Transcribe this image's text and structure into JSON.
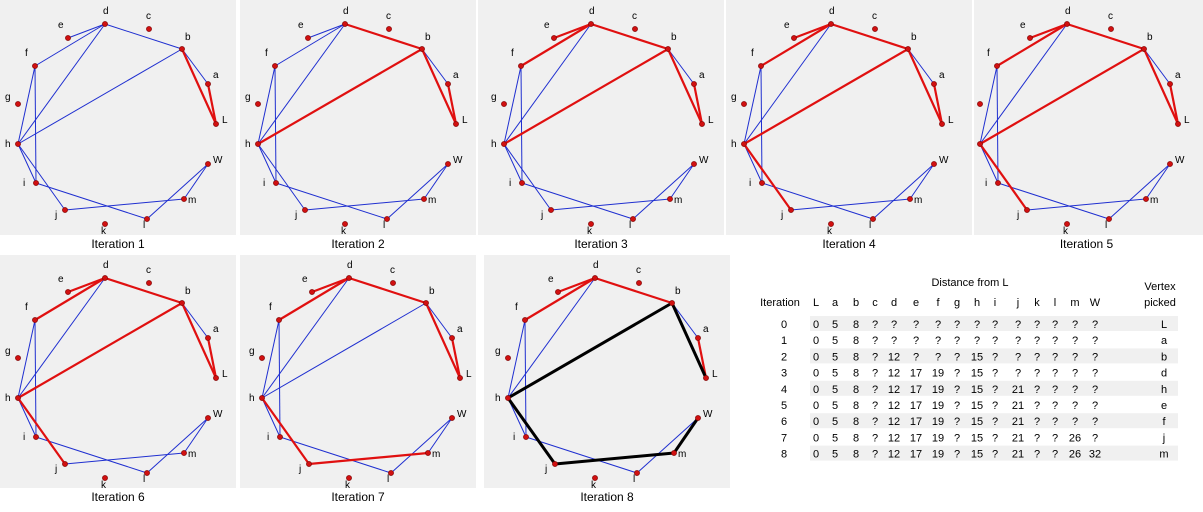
{
  "graph": {
    "vertices": [
      {
        "id": "d",
        "label": "d"
      },
      {
        "id": "c",
        "label": "c"
      },
      {
        "id": "e",
        "label": "e"
      },
      {
        "id": "b",
        "label": "b"
      },
      {
        "id": "f",
        "label": "f"
      },
      {
        "id": "a",
        "label": "a"
      },
      {
        "id": "g",
        "label": "g"
      },
      {
        "id": "L",
        "label": "L"
      },
      {
        "id": "h",
        "label": "h"
      },
      {
        "id": "W",
        "label": "W"
      },
      {
        "id": "i",
        "label": "i"
      },
      {
        "id": "m",
        "label": "m"
      },
      {
        "id": "j",
        "label": "j"
      },
      {
        "id": "l",
        "label": "l"
      },
      {
        "id": "k",
        "label": "k"
      }
    ],
    "edges": [
      [
        "d",
        "e"
      ],
      [
        "d",
        "f"
      ],
      [
        "d",
        "b"
      ],
      [
        "d",
        "h"
      ],
      [
        "b",
        "a"
      ],
      [
        "b",
        "L"
      ],
      [
        "a",
        "L"
      ],
      [
        "b",
        "h"
      ],
      [
        "f",
        "h"
      ],
      [
        "f",
        "i"
      ],
      [
        "h",
        "i"
      ],
      [
        "i",
        "l"
      ],
      [
        "j",
        "m"
      ],
      [
        "j",
        "h"
      ],
      [
        "m",
        "W"
      ],
      [
        "l",
        "W"
      ]
    ]
  },
  "iterations": [
    {
      "caption": "Iteration 1",
      "red_edges": [
        [
          "b",
          "L"
        ],
        [
          "a",
          "L"
        ]
      ],
      "black_edges": []
    },
    {
      "caption": "Iteration 2",
      "red_edges": [
        [
          "b",
          "L"
        ],
        [
          "a",
          "L"
        ],
        [
          "d",
          "b"
        ],
        [
          "b",
          "h"
        ]
      ],
      "black_edges": []
    },
    {
      "caption": "Iteration 3",
      "red_edges": [
        [
          "b",
          "L"
        ],
        [
          "a",
          "L"
        ],
        [
          "d",
          "b"
        ],
        [
          "b",
          "h"
        ],
        [
          "d",
          "e"
        ],
        [
          "d",
          "f"
        ]
      ],
      "black_edges": []
    },
    {
      "caption": "Iteration 4",
      "red_edges": [
        [
          "b",
          "L"
        ],
        [
          "a",
          "L"
        ],
        [
          "d",
          "b"
        ],
        [
          "b",
          "h"
        ],
        [
          "d",
          "e"
        ],
        [
          "d",
          "f"
        ],
        [
          "j",
          "h"
        ]
      ],
      "black_edges": []
    },
    {
      "caption": "Iteration 5",
      "red_edges": [
        [
          "b",
          "L"
        ],
        [
          "a",
          "L"
        ],
        [
          "d",
          "b"
        ],
        [
          "b",
          "h"
        ],
        [
          "d",
          "e"
        ],
        [
          "d",
          "f"
        ],
        [
          "j",
          "h"
        ]
      ],
      "black_edges": []
    },
    {
      "caption": "Iteration 6",
      "red_edges": [
        [
          "b",
          "L"
        ],
        [
          "a",
          "L"
        ],
        [
          "d",
          "b"
        ],
        [
          "b",
          "h"
        ],
        [
          "d",
          "e"
        ],
        [
          "d",
          "f"
        ],
        [
          "j",
          "h"
        ]
      ],
      "black_edges": []
    },
    {
      "caption": "Iteration 7",
      "red_edges": [
        [
          "b",
          "L"
        ],
        [
          "a",
          "L"
        ],
        [
          "d",
          "b"
        ],
        [
          "d",
          "e"
        ],
        [
          "d",
          "f"
        ],
        [
          "j",
          "h"
        ],
        [
          "j",
          "m"
        ]
      ],
      "black_edges": []
    },
    {
      "caption": "Iteration 8",
      "red_edges": [
        [
          "a",
          "L"
        ],
        [
          "d",
          "b"
        ],
        [
          "d",
          "e"
        ],
        [
          "d",
          "f"
        ]
      ],
      "black_edges": [
        [
          "b",
          "L"
        ],
        [
          "b",
          "h"
        ],
        [
          "j",
          "h"
        ],
        [
          "j",
          "m"
        ],
        [
          "m",
          "W"
        ]
      ]
    }
  ],
  "table": {
    "title": "Distance from L",
    "iteration_header": "Iteration",
    "columns": [
      "L",
      "a",
      "b",
      "c",
      "d",
      "e",
      "f",
      "g",
      "h",
      "i",
      "j",
      "k",
      "l",
      "m",
      "W"
    ],
    "picked_header": [
      "Vertex",
      "picked"
    ],
    "rows": [
      {
        "iter": "0",
        "values": [
          "0",
          "5",
          "8",
          "?",
          "?",
          "?",
          "?",
          "?",
          "?",
          "?",
          "?",
          "?",
          "?",
          "?",
          "?"
        ],
        "picked": "L"
      },
      {
        "iter": "1",
        "values": [
          "0",
          "5",
          "8",
          "?",
          "?",
          "?",
          "?",
          "?",
          "?",
          "?",
          "?",
          "?",
          "?",
          "?",
          "?"
        ],
        "picked": "a"
      },
      {
        "iter": "2",
        "values": [
          "0",
          "5",
          "8",
          "?",
          "12",
          "?",
          "?",
          "?",
          "15",
          "?",
          "?",
          "?",
          "?",
          "?",
          "?"
        ],
        "picked": "b"
      },
      {
        "iter": "3",
        "values": [
          "0",
          "5",
          "8",
          "?",
          "12",
          "17",
          "19",
          "?",
          "15",
          "?",
          "?",
          "?",
          "?",
          "?",
          "?"
        ],
        "picked": "d"
      },
      {
        "iter": "4",
        "values": [
          "0",
          "5",
          "8",
          "?",
          "12",
          "17",
          "19",
          "?",
          "15",
          "?",
          "21",
          "?",
          "?",
          "?",
          "?"
        ],
        "picked": "h"
      },
      {
        "iter": "5",
        "values": [
          "0",
          "5",
          "8",
          "?",
          "12",
          "17",
          "19",
          "?",
          "15",
          "?",
          "21",
          "?",
          "?",
          "?",
          "?"
        ],
        "picked": "e"
      },
      {
        "iter": "6",
        "values": [
          "0",
          "5",
          "8",
          "?",
          "12",
          "17",
          "19",
          "?",
          "15",
          "?",
          "21",
          "?",
          "?",
          "?",
          "?"
        ],
        "picked": "f"
      },
      {
        "iter": "7",
        "values": [
          "0",
          "5",
          "8",
          "?",
          "12",
          "17",
          "19",
          "?",
          "15",
          "?",
          "21",
          "?",
          "?",
          "26",
          "?"
        ],
        "picked": "j"
      },
      {
        "iter": "8",
        "values": [
          "0",
          "5",
          "8",
          "?",
          "12",
          "17",
          "19",
          "?",
          "15",
          "?",
          "21",
          "?",
          "?",
          "26",
          "32"
        ],
        "picked": "m"
      }
    ]
  },
  "colors": {
    "panel_bg": "#f0f0f0",
    "base_edge": "#1f2fd0",
    "red_edge": "#e01010",
    "black_edge": "#000000",
    "node_fill": "#d01010",
    "row_stripe": "#f0f0f0"
  }
}
